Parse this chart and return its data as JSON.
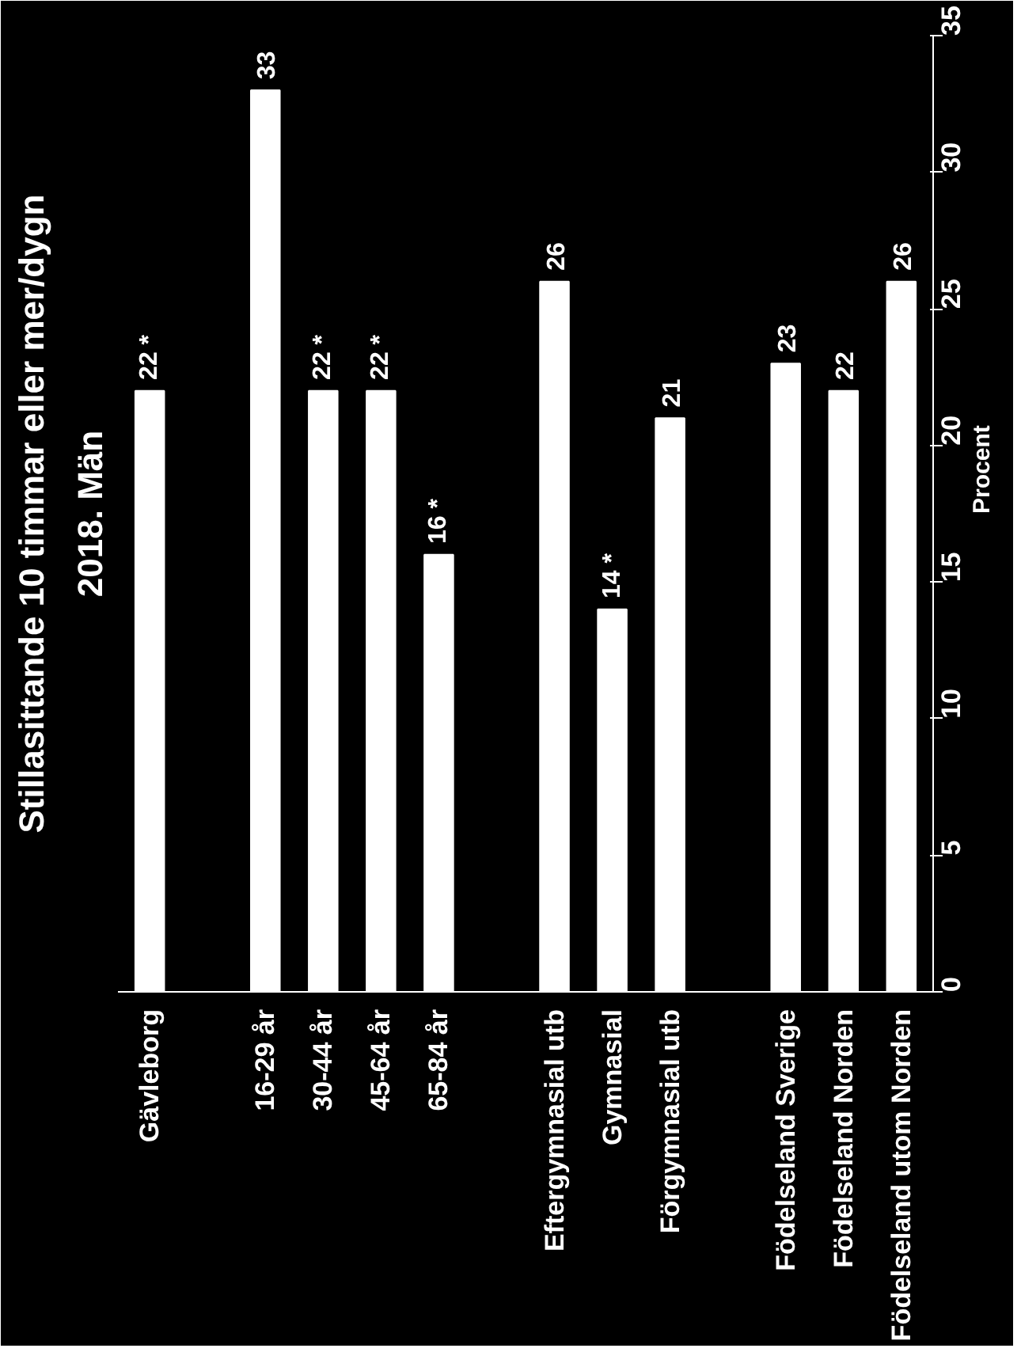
{
  "chart_data": {
    "type": "bar",
    "title": "Stillasittande 10 timmar eller mer/dygn",
    "subtitle": "2018. Män",
    "ylabel": "Procent",
    "categories": [
      "Gävleborg",
      null,
      "16-29 år",
      "30-44 år",
      "45-64 år",
      "65-84 år",
      null,
      "Eftergymnasial utb",
      "Gymnasial",
      "Förgymnasial utb",
      null,
      "Födelseland Sverige",
      "Födelseland Norden",
      "Födelseland utom Norden"
    ],
    "values": [
      22,
      null,
      33,
      22,
      22,
      16,
      null,
      26,
      14,
      21,
      null,
      23,
      22,
      26
    ],
    "value_labels": [
      "22 *",
      null,
      "33",
      "22 *",
      "22 *",
      "16 *",
      null,
      "26",
      "14 *",
      "21",
      null,
      "23",
      "22",
      "26"
    ],
    "color": "#ffffff",
    "ylim": [
      0,
      35
    ],
    "yticks": [
      0,
      5,
      10,
      15,
      20,
      25,
      30,
      35
    ],
    "grid": false
  }
}
